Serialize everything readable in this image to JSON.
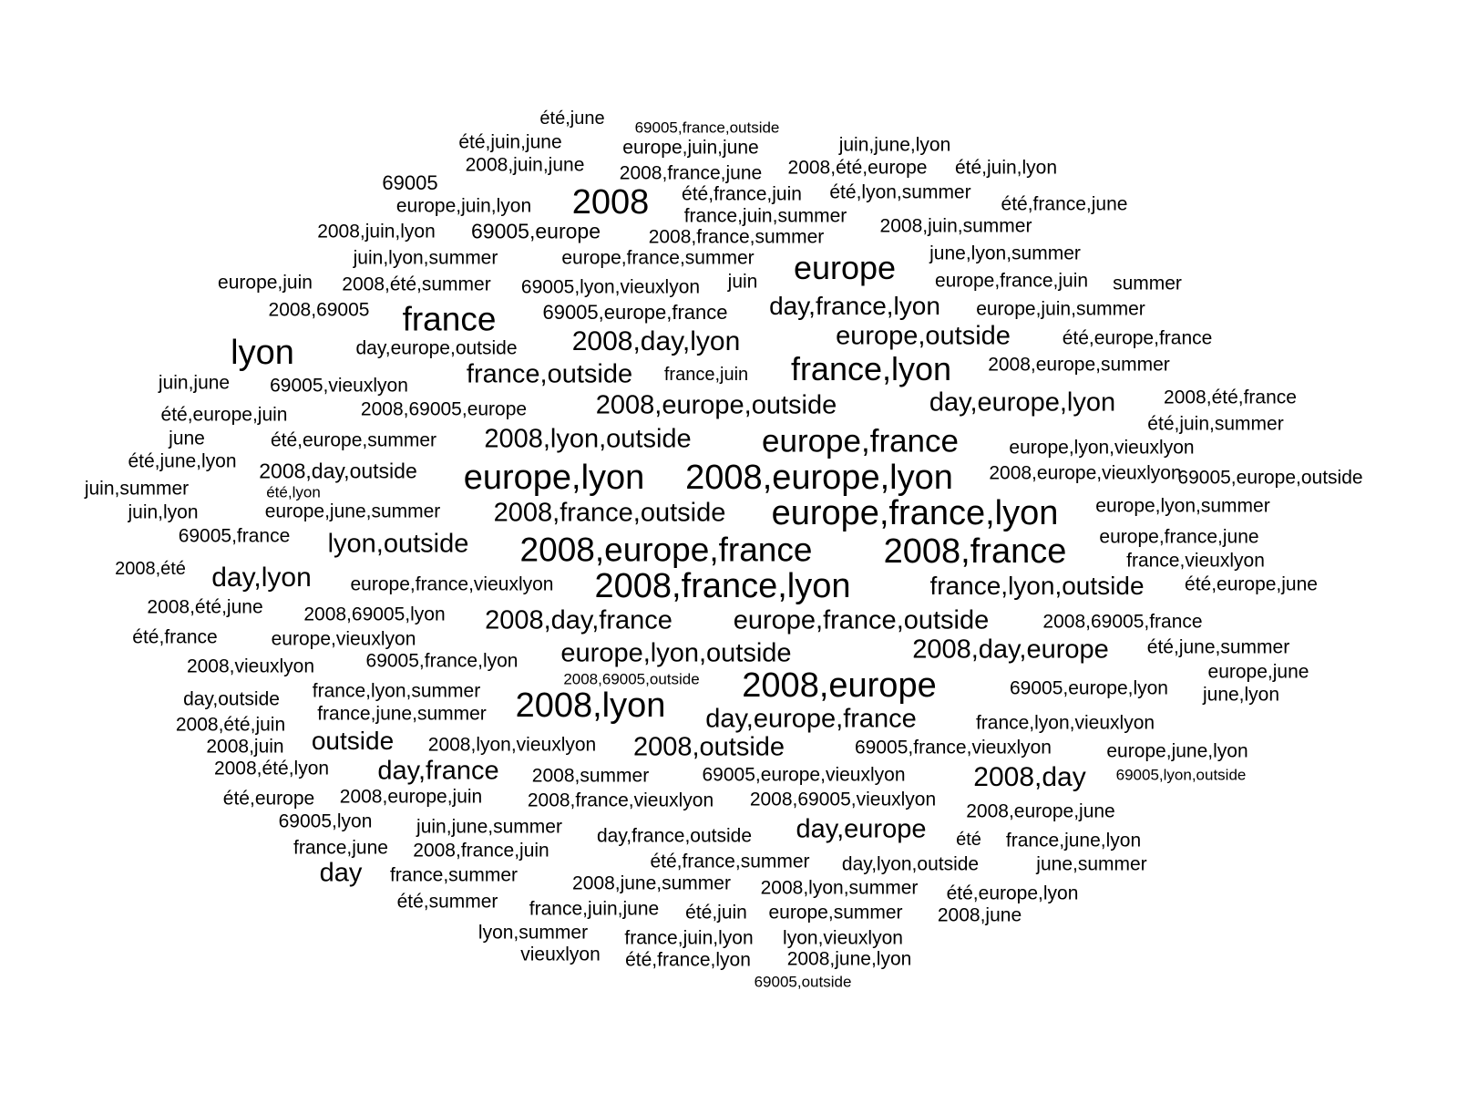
{
  "words": [
    "été,june",
    "69005,france,outside",
    "été,juin,june",
    "europe,juin,june",
    "juin,june,lyon",
    "2008,juin,june",
    "2008,france,june",
    "2008,été,europe",
    "été,juin,lyon",
    "69005",
    "2008",
    "été,france,juin",
    "été,lyon,summer",
    "europe,juin,lyon",
    "été,france,june",
    "france,juin,summer",
    "2008,juin,lyon",
    "69005,europe",
    "2008,france,summer",
    "2008,juin,summer",
    "juin,lyon,summer",
    "europe,france,summer",
    "june,lyon,summer",
    "europe",
    "europe,juin",
    "2008,été,summer",
    "69005,lyon,vieuxlyon",
    "juin",
    "europe,france,juin",
    "summer",
    "2008,69005",
    "france",
    "69005,europe,france",
    "day,france,lyon",
    "europe,juin,summer",
    "lyon",
    "2008,day,lyon",
    "europe,outside",
    "été,europe,france",
    "day,europe,outside",
    "france,lyon",
    "2008,europe,summer",
    "juin,june",
    "69005,vieuxlyon",
    "france,outside",
    "france,juin",
    "2008,été,france",
    "été,europe,juin",
    "2008,69005,europe",
    "2008,europe,outside",
    "day,europe,lyon",
    "été,juin,summer",
    "june",
    "été,europe,summer",
    "2008,lyon,outside",
    "europe,france",
    "europe,lyon,vieuxlyon",
    "été,june,lyon",
    "2008,day,outside",
    "europe,lyon",
    "2008,europe,lyon",
    "2008,europe,vieuxlyon",
    "été,lyon",
    "69005,europe,outside",
    "juin,summer",
    "juin,lyon",
    "europe,june,summer",
    "2008,france,outside",
    "europe,france,lyon",
    "europe,lyon,summer",
    "69005,france",
    "lyon,outside",
    "2008,europe,france",
    "2008,france",
    "europe,france,june",
    "2008,été",
    "day,lyon",
    "france,vieuxlyon",
    "europe,france,vieuxlyon",
    "2008,france,lyon",
    "france,lyon,outside",
    "été,europe,june",
    "2008,été,june",
    "2008,69005,lyon",
    "2008,day,france",
    "europe,france,outside",
    "2008,69005,france",
    "été,france",
    "europe,vieuxlyon",
    "europe,lyon,outside",
    "2008,day,europe",
    "été,june,summer",
    "2008,vieuxlyon",
    "69005,france,lyon",
    "2008,69005,outside",
    "europe,june",
    "2008,europe",
    "day,outside",
    "france,lyon,summer",
    "69005,europe,lyon",
    "june,lyon",
    "2008,lyon",
    "2008,été,juin",
    "france,june,summer",
    "day,europe,france",
    "france,lyon,vieuxlyon",
    "2008,juin",
    "outside",
    "2008,lyon,vieuxlyon",
    "2008,outside",
    "69005,france,vieuxlyon",
    "europe,june,lyon",
    "2008,été,lyon",
    "day,france",
    "2008,summer",
    "69005,europe,vieuxlyon",
    "2008,day",
    "69005,lyon,outside",
    "été,europe",
    "2008,europe,juin",
    "2008,france,vieuxlyon",
    "2008,69005,vieuxlyon",
    "2008,europe,june",
    "69005,lyon",
    "juin,june,summer",
    "day,france,outside",
    "day,europe",
    "été",
    "france,june,lyon",
    "france,june",
    "2008,france,juin",
    "été,france,summer",
    "day,lyon,outside",
    "june,summer",
    "day",
    "france,summer",
    "2008,june,summer",
    "2008,lyon,summer",
    "été,europe,lyon",
    "été,summer",
    "france,juin,june",
    "été,juin",
    "europe,summer",
    "2008,june",
    "lyon,summer",
    "france,juin,lyon",
    "lyon,vieuxlyon",
    "vieuxlyon",
    "été,france,lyon",
    "2008,june,lyon",
    "69005,outside"
  ]
}
